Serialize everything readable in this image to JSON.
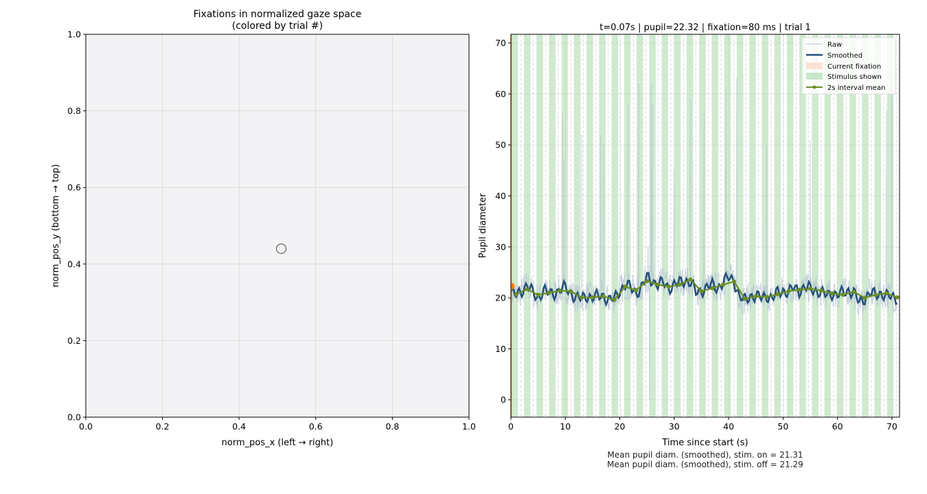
{
  "chart_data": [
    {
      "type": "scatter",
      "title_line1": "Fixations in normalized gaze space",
      "title_line2": "(colored by trial #)",
      "xlabel": "norm_pos_x (left → right)",
      "ylabel": "norm_pos_y (bottom → top)",
      "xlim": [
        0,
        1
      ],
      "ylim": [
        0,
        1
      ],
      "xticks": [
        "0.0",
        "0.2",
        "0.4",
        "0.6",
        "0.8",
        "1.0"
      ],
      "yticks": [
        "0.0",
        "0.2",
        "0.4",
        "0.6",
        "0.8",
        "1.0"
      ],
      "grid": true,
      "points": [
        {
          "x": 0.51,
          "y": 0.44
        }
      ],
      "colors": {
        "face": "#f3f3f5",
        "edge": "#333333",
        "point_edge": "#444444"
      }
    },
    {
      "type": "line",
      "title": "t=0.07s | pupil=22.32 | fixation=80 ms | trial 1",
      "xlabel": "Time since start (s)",
      "ylabel": "Pupil diameter",
      "xlim": [
        0,
        71.4
      ],
      "ylim": [
        -3.4,
        71.7
      ],
      "xticks": [
        "0",
        "10",
        "20",
        "30",
        "40",
        "50",
        "60",
        "70"
      ],
      "yticks": [
        "0",
        "10",
        "20",
        "30",
        "40",
        "50",
        "60",
        "70"
      ],
      "grid": true,
      "legend_position": "top-right",
      "legend": [
        "Raw",
        "Smoothed",
        "Current fixation",
        "Stimulus shown",
        "2s interval mean"
      ],
      "stimulus_period_s": 2.3,
      "stimulus_duration_s": 1.2,
      "smoothed": {
        "t_step": 1,
        "values": [
          21,
          20.5,
          21.5,
          22.5,
          21,
          20,
          21.5,
          20.8,
          21,
          21.5,
          22,
          21,
          20,
          19.8,
          20.5,
          20,
          20.3,
          20.5,
          19.5,
          19.8,
          21.5,
          22.5,
          22,
          21,
          22,
          24,
          23.5,
          22.5,
          23,
          22,
          22.5,
          23,
          23.5,
          23,
          21,
          21.5,
          22,
          22.5,
          22,
          23,
          24,
          23.5,
          20,
          19.5,
          20.5,
          20.2,
          20,
          20.5,
          19.8,
          21,
          21.5,
          21,
          22,
          21.5,
          22,
          21.8,
          21.5,
          21,
          20.5,
          21,
          20.5,
          21,
          21.5,
          21,
          19,
          20,
          21,
          20.5,
          21,
          20.5,
          20,
          20
        ]
      },
      "raw_spikes": [
        [
          9.5,
          56
        ],
        [
          9.8,
          47
        ],
        [
          13,
          52
        ],
        [
          16.5,
          52
        ],
        [
          17,
          50
        ],
        [
          21.5,
          58
        ],
        [
          23.5,
          62
        ],
        [
          25.2,
          30
        ],
        [
          25.8,
          62
        ],
        [
          26,
          58
        ],
        [
          25.5,
          0
        ],
        [
          30,
          45
        ],
        [
          33,
          59
        ],
        [
          35.5,
          57
        ],
        [
          39.5,
          61
        ],
        [
          41.5,
          63
        ],
        [
          47,
          50
        ],
        [
          55,
          51
        ],
        [
          69,
          57
        ],
        [
          70,
          68
        ]
      ],
      "interval_mean": {
        "t": [
          1,
          3,
          5,
          7,
          9,
          11,
          13,
          15,
          17,
          19,
          21,
          23,
          25,
          27,
          29,
          31,
          33,
          35,
          37,
          39,
          41,
          43,
          45,
          47,
          49,
          51,
          53,
          55,
          57,
          59,
          61,
          63,
          65,
          67,
          69,
          71
        ],
        "values": [
          20.7,
          21.7,
          20.6,
          21.0,
          21.4,
          21.3,
          20.05,
          20.1,
          20.3,
          19.6,
          22.2,
          21.5,
          23.3,
          22.6,
          22.2,
          22.6,
          23.6,
          21.3,
          21.9,
          22.6,
          23.2,
          19.8,
          20.3,
          20.2,
          20.7,
          21.3,
          21.6,
          21.8,
          21.4,
          20.9,
          20.6,
          21.2,
          20.0,
          20.6,
          20.9,
          20.1
        ]
      },
      "current": {
        "t": 0.07,
        "pupil": 22.32
      },
      "colors": {
        "raw": "#b8c4d6",
        "smoothed": "#23507a",
        "fixation": "#fbe3d3",
        "stimulus": "#a8d8a8",
        "mean": "#6b8e23",
        "current": "#ff7f0e"
      },
      "annotations": [
        "Mean pupil diam. (smoothed), stim. on = 21.31",
        "Mean pupil diam. (smoothed), stim. off = 21.29"
      ]
    }
  ]
}
